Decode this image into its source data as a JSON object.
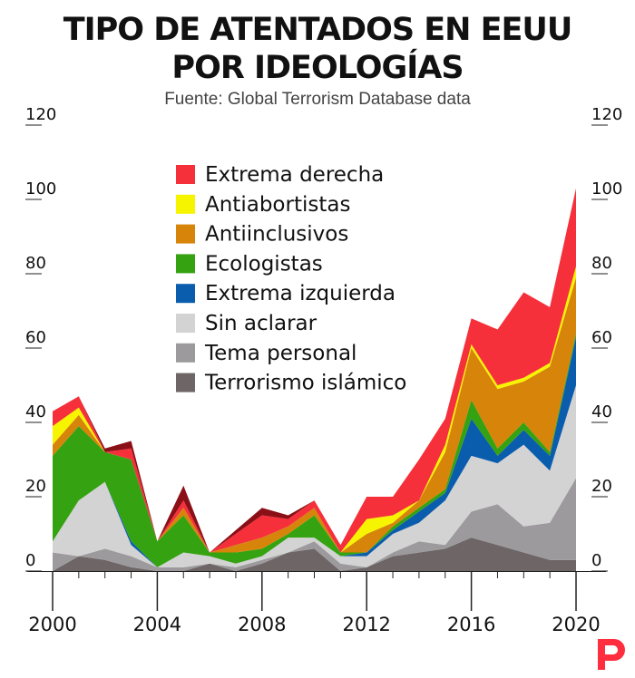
{
  "header": {
    "title_line1": "TIPO DE ATENTADOS EN EEUU",
    "title_line2": "POR IDEOLOGÍAS",
    "source": "Fuente: Global Terrorism Database data"
  },
  "brand": {
    "logo": "P",
    "color": "#ff2d3d"
  },
  "chart_data": {
    "type": "area",
    "stacked": true,
    "x": [
      2000,
      2001,
      2002,
      2003,
      2004,
      2005,
      2006,
      2007,
      2008,
      2009,
      2010,
      2011,
      2012,
      2013,
      2014,
      2015,
      2016,
      2017,
      2018,
      2019,
      2020
    ],
    "x_tick_labels": [
      "2000",
      "2004",
      "2008",
      "2012",
      "2016",
      "2020"
    ],
    "y_tick_labels": [
      "0",
      "20",
      "40",
      "60",
      "80",
      "100",
      "120"
    ],
    "ylim": [
      0,
      125
    ],
    "grid": false,
    "legend_position": "top-center",
    "series": [
      {
        "name": "Terrorismo islámico",
        "color": "#6d6566",
        "values": [
          0,
          4,
          3,
          1,
          0,
          0,
          2,
          0,
          2,
          5,
          6,
          0,
          1,
          4,
          5,
          6,
          9,
          7,
          5,
          3,
          3
        ]
      },
      {
        "name": "Tema personal",
        "color": "#9c9a9c",
        "values": [
          5,
          0,
          3,
          3,
          1,
          1,
          0,
          1,
          1,
          0,
          2,
          2,
          0,
          1,
          3,
          1,
          7,
          11,
          7,
          10,
          22
        ]
      },
      {
        "name": "Sin aclarar",
        "color": "#d3d3d3",
        "values": [
          3,
          15,
          18,
          3,
          0,
          4,
          2,
          1,
          1,
          4,
          1,
          2,
          3,
          5,
          5,
          12,
          15,
          11,
          22,
          14,
          25
        ]
      },
      {
        "name": "Extrema izquierda",
        "color": "#0a5cad",
        "values": [
          0,
          0,
          0,
          1,
          0,
          0,
          0,
          0,
          0,
          0,
          0,
          0,
          1,
          1,
          3,
          2,
          10,
          2,
          4,
          4,
          13
        ]
      },
      {
        "name": "Ecologistas",
        "color": "#35a212",
        "values": [
          23,
          20,
          8,
          22,
          7,
          10,
          1,
          3,
          2,
          1,
          6,
          1,
          0,
          1,
          1,
          1,
          5,
          2,
          2,
          1,
          1
        ]
      },
      {
        "name": "Antiinclusivos",
        "color": "#d6840a",
        "values": [
          3,
          3,
          0,
          0,
          0,
          2,
          0,
          2,
          3,
          2,
          2,
          0,
          5,
          1,
          2,
          10,
          14,
          16,
          11,
          23,
          15
        ]
      },
      {
        "name": "Antiabortistas",
        "color": "#f7f400",
        "values": [
          5,
          2,
          0,
          0,
          0,
          0,
          0,
          0,
          0,
          0,
          0,
          0,
          4,
          2,
          0,
          2,
          1,
          1,
          1,
          1,
          3
        ]
      },
      {
        "name": "Extrema derecha",
        "color": "#f5303a",
        "values": [
          4,
          3,
          0,
          3,
          0,
          2,
          0,
          3,
          6,
          2,
          2,
          2,
          6,
          5,
          11,
          7,
          7,
          15,
          23,
          15,
          21
        ]
      }
    ],
    "extra_series": [
      {
        "color": "#8b0f16",
        "values": [
          0,
          0,
          1,
          2,
          0,
          4,
          0,
          1,
          2,
          1,
          0,
          0,
          0,
          0,
          0,
          0,
          0,
          0,
          0,
          0,
          0
        ]
      }
    ],
    "legend": [
      {
        "name": "Extrema derecha",
        "color": "#f5303a"
      },
      {
        "name": "Antiabortistas",
        "color": "#f7f400"
      },
      {
        "name": "Antiinclusivos",
        "color": "#d6840a"
      },
      {
        "name": "Ecologistas",
        "color": "#35a212"
      },
      {
        "name": "Extrema izquierda",
        "color": "#0a5cad"
      },
      {
        "name": "Sin aclarar",
        "color": "#d3d3d3"
      },
      {
        "name": "Tema personal",
        "color": "#9c9a9c"
      },
      {
        "name": "Terrorismo islámico",
        "color": "#6d6566"
      }
    ]
  }
}
